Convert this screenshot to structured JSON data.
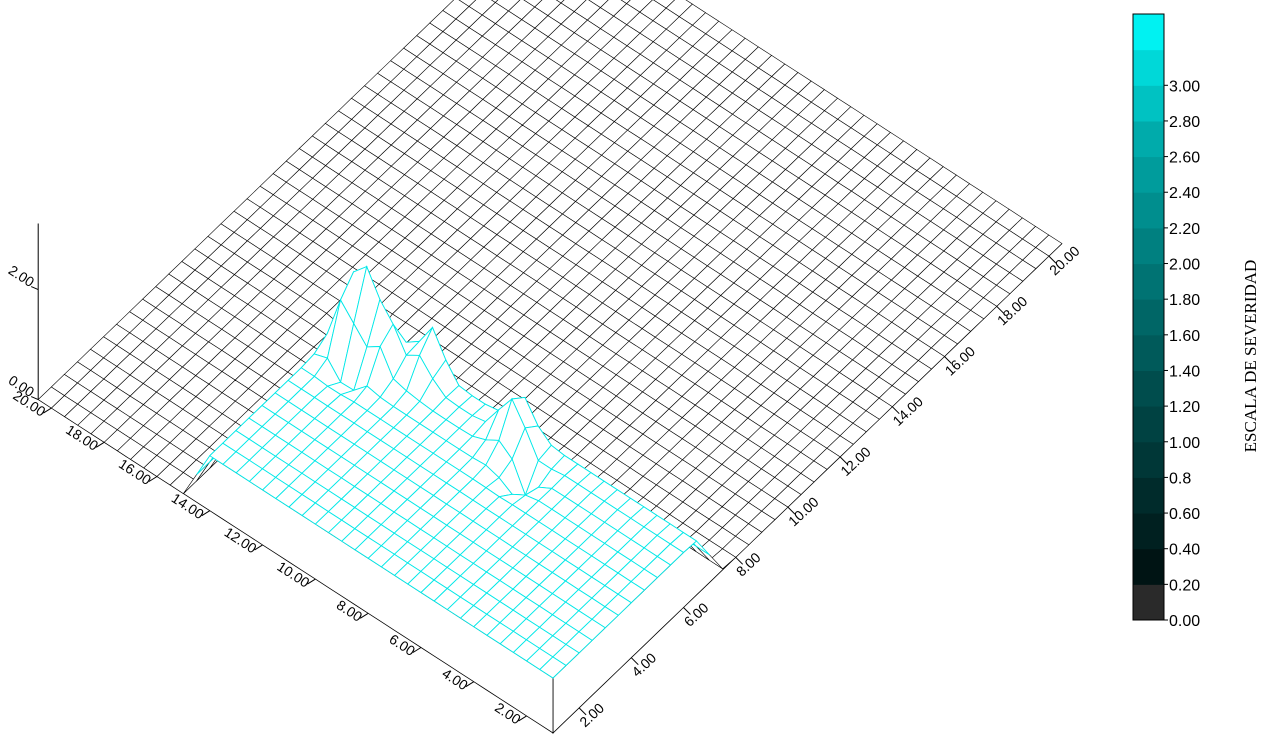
{
  "chart_data": {
    "type": "surface3d",
    "title": "",
    "x_axis": {
      "ticks": [
        2.0,
        4.0,
        6.0,
        8.0,
        10.0,
        12.0,
        14.0,
        16.0,
        18.0,
        20.0
      ],
      "tick_labels": [
        "2.00",
        "4.00",
        "6.00",
        "8.00",
        "10.00",
        "12.00",
        "14.00",
        "16.00",
        "18.00",
        "20.00"
      ],
      "range": [
        1,
        20.5
      ]
    },
    "y_axis": {
      "ticks": [
        2.0,
        4.0,
        6.0,
        8.0,
        10.0,
        12.0,
        14.0,
        16.0,
        18.0,
        20.0
      ],
      "tick_labels": [
        "2.00",
        "4.00",
        "6.00",
        "8.00",
        "10.00",
        "12.00",
        "14.00",
        "16.00",
        "18.00",
        "20.00"
      ],
      "range": [
        1,
        20.5
      ]
    },
    "z_axis": {
      "ticks": [
        0.0,
        2.0
      ],
      "tick_labels": [
        "0.00",
        "2.00"
      ],
      "range": [
        0,
        3.2
      ]
    },
    "colorbar": {
      "title": "ESCALA DE SEVERIDAD",
      "levels": [
        0.0,
        0.2,
        0.4,
        0.6,
        0.8,
        1.0,
        1.2,
        1.4,
        1.6,
        1.8,
        2.0,
        2.2,
        2.4,
        2.6,
        2.8,
        3.0
      ],
      "tick_labels": [
        "0.00",
        "0.20",
        "0.40",
        "0.60",
        "0.8",
        "1.00",
        "1.20",
        "1.40",
        "1.60",
        "1.80",
        "2.00",
        "2.20",
        "2.40",
        "2.60",
        "2.80",
        "3.00"
      ],
      "colors": [
        "#2a2a2a",
        "#001414",
        "#002020",
        "#002b2b",
        "#003737",
        "#004242",
        "#004d4d",
        "#005a5a",
        "#006666",
        "#007373",
        "#008080",
        "#008e8e",
        "#009c9c",
        "#00abab",
        "#00c2c2",
        "#00d8d8",
        "#00f2f2"
      ]
    },
    "surface": {
      "grid": "1.0 to 20.5 step 0.5 (x and y)",
      "base_level": 0.0,
      "raised_region": {
        "x": [
          1.0,
          7.0
        ],
        "y": [
          1.0,
          14.5
        ],
        "level": 1.0
      },
      "peaks": [
        {
          "x": 5.8,
          "y": 13.2,
          "z": 2.9
        },
        {
          "x": 5.8,
          "y": 12.3,
          "z": 2.1
        },
        {
          "x": 6.4,
          "y": 11.0,
          "z": 1.8
        },
        {
          "x": 6.2,
          "y": 7.6,
          "z": 1.8
        },
        {
          "x": 5.7,
          "y": 6.9,
          "z": 1.45
        }
      ],
      "pits": [
        {
          "x": 5.4,
          "y": 12.8,
          "z": 0.1
        },
        {
          "x": 5.5,
          "y": 6.6,
          "z": 0.3
        }
      ],
      "side_dip": {
        "x": 7.5,
        "y": 14.8,
        "z": -0.55
      }
    }
  }
}
